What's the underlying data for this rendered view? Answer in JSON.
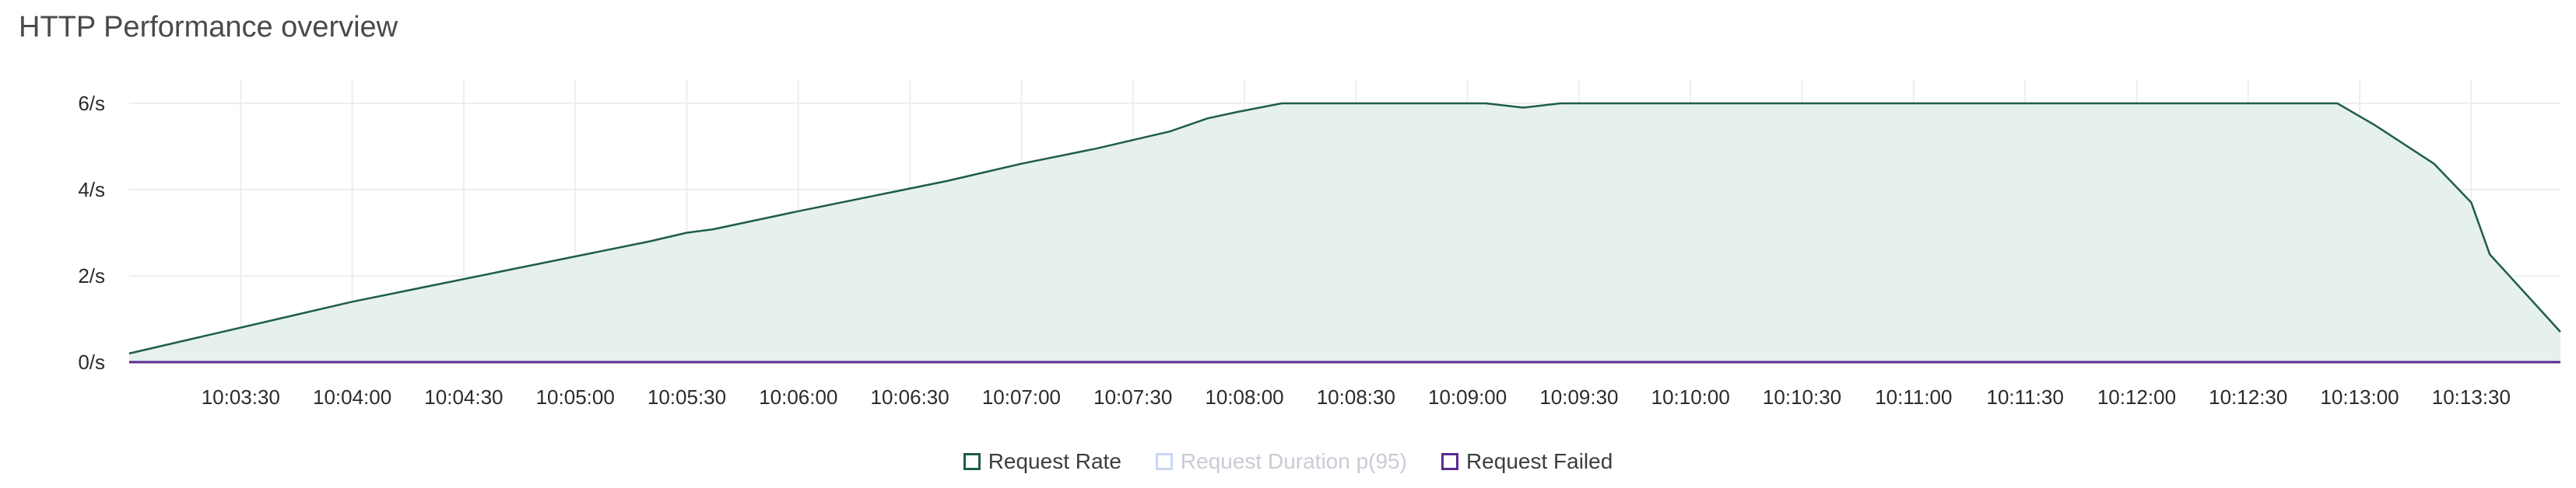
{
  "title": "HTTP Performance overview",
  "colors": {
    "rate": "#1e5e47",
    "rate_fill": "#e6f0ee",
    "duration": "#c9d6f5",
    "failed": "#5b2a91",
    "grid": "#eeeeee",
    "axis_text": "#2b2b2b"
  },
  "chart_data": {
    "type": "area",
    "title": "",
    "xlabel": "",
    "ylabel": "",
    "x_range": [
      "10:03:00",
      "10:13:54"
    ],
    "ylim": [
      0,
      6
    ],
    "y_ticks": [
      {
        "value": 0,
        "label": "0/s"
      },
      {
        "value": 2,
        "label": "2/s"
      },
      {
        "value": 4,
        "label": "4/s"
      },
      {
        "value": 6,
        "label": "6/s"
      }
    ],
    "x_ticks": [
      "10:03:30",
      "10:04:00",
      "10:04:30",
      "10:05:00",
      "10:05:30",
      "10:06:00",
      "10:06:30",
      "10:07:00",
      "10:07:30",
      "10:08:00",
      "10:08:30",
      "10:09:00",
      "10:09:30",
      "10:10:00",
      "10:10:30",
      "10:11:00",
      "10:11:30",
      "10:12:00",
      "10:12:30",
      "10:13:00",
      "10:13:30"
    ],
    "grid": true,
    "legend": "bottom-center",
    "series": [
      {
        "name": "Request Rate",
        "points": [
          [
            "10:03:00",
            0.2
          ],
          [
            "10:03:20",
            0.6
          ],
          [
            "10:03:40",
            1.0
          ],
          [
            "10:04:00",
            1.4
          ],
          [
            "10:04:20",
            1.75
          ],
          [
            "10:04:40",
            2.1
          ],
          [
            "10:05:00",
            2.45
          ],
          [
            "10:05:20",
            2.8
          ],
          [
            "10:05:30",
            3.0
          ],
          [
            "10:05:37",
            3.08
          ],
          [
            "10:06:00",
            3.5
          ],
          [
            "10:06:20",
            3.85
          ],
          [
            "10:06:40",
            4.2
          ],
          [
            "10:07:00",
            4.6
          ],
          [
            "10:07:20",
            4.95
          ],
          [
            "10:07:40",
            5.35
          ],
          [
            "10:07:50",
            5.65
          ],
          [
            "10:07:58",
            5.8
          ],
          [
            "10:08:10",
            6.0
          ],
          [
            "10:09:05",
            6.0
          ],
          [
            "10:09:15",
            5.9
          ],
          [
            "10:09:25",
            6.0
          ],
          [
            "10:12:54",
            6.0
          ],
          [
            "10:13:04",
            5.5
          ],
          [
            "10:13:20",
            4.6
          ],
          [
            "10:13:30",
            3.7
          ],
          [
            "10:13:35",
            2.5
          ],
          [
            "10:13:54",
            0.7
          ]
        ]
      },
      {
        "name": "Request Duration p(95)",
        "points": []
      },
      {
        "name": "Request Failed",
        "points": [
          [
            "10:03:00",
            0
          ],
          [
            "10:13:54",
            0
          ]
        ]
      }
    ]
  },
  "legend_items": [
    {
      "label": "Request Rate",
      "color": "#1e5e47",
      "active": true
    },
    {
      "label": "Request Duration p(95)",
      "color": "#c9d6f5",
      "active": false
    },
    {
      "label": "Request Failed",
      "color": "#5b2a91",
      "active": true
    }
  ]
}
